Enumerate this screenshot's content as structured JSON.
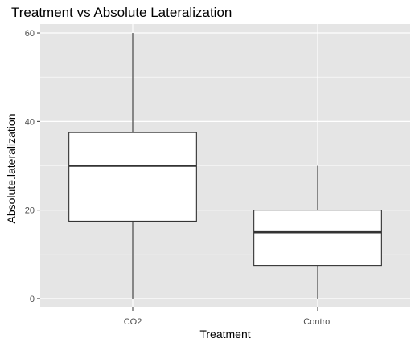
{
  "chart_data": {
    "type": "box",
    "title": "Treatment vs Absolute Lateralization",
    "xlabel": "Treatment",
    "ylabel": "Absolute.lateralization",
    "categories": [
      "CO2",
      "Control"
    ],
    "boxes": [
      {
        "category": "CO2",
        "min": 0,
        "q1": 17.5,
        "median": 30,
        "q3": 37.5,
        "max": 60
      },
      {
        "category": "Control",
        "min": 0,
        "q1": 7.5,
        "median": 15,
        "q3": 20,
        "max": 30
      }
    ],
    "y_ticks": [
      0,
      20,
      40,
      60
    ],
    "ylim": [
      -2,
      62
    ],
    "grid": true,
    "colors": {
      "panel_background": "#e5e5e5",
      "grid_line": "#ffffff",
      "box_fill": "#ffffff",
      "box_stroke": "#333333",
      "tick_label": "#4d4d4d"
    }
  }
}
